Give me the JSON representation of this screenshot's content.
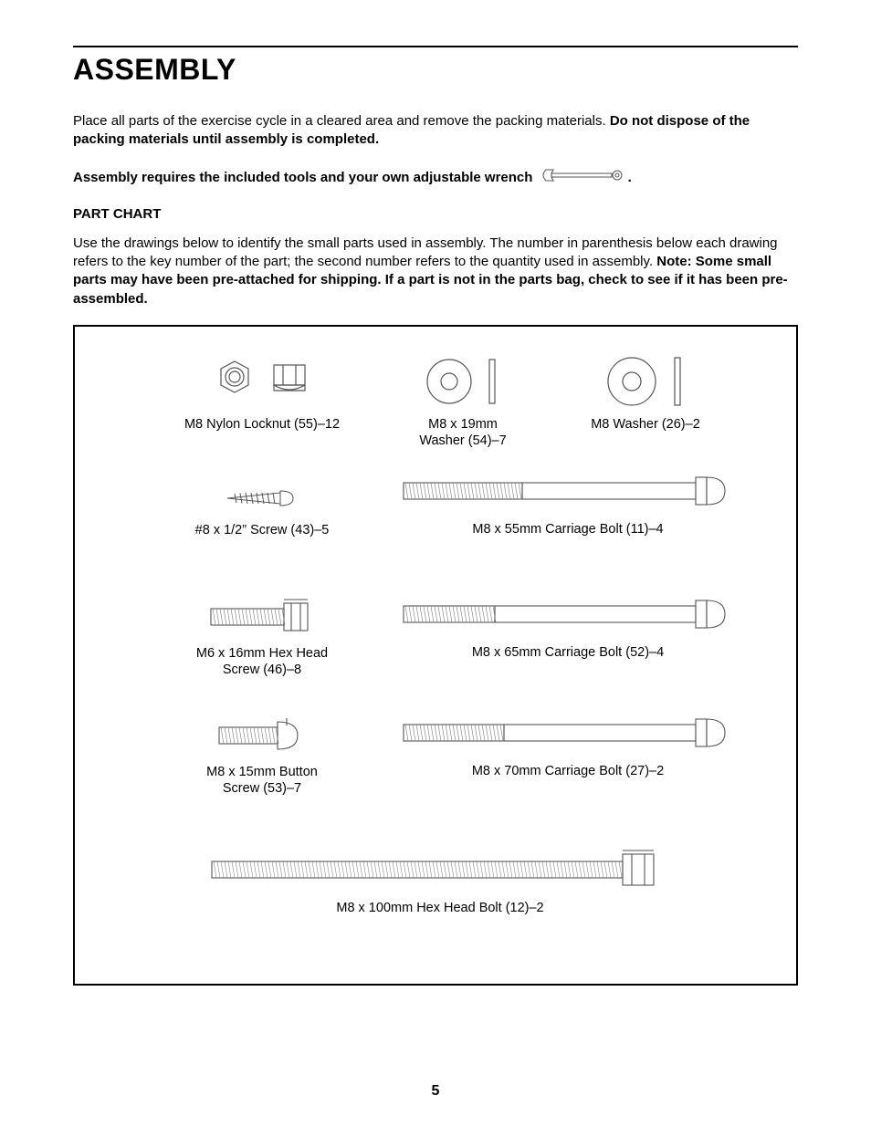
{
  "title": "ASSEMBLY",
  "intro": {
    "lead": "Place all parts of the exercise cycle in a cleared area and remove the packing materials. ",
    "bold1": "Do not dispose of the packing materials until assembly is completed.",
    "tools_lead": "Assembly requires the included tools and your own adjustable wrench",
    "tools_tail": "."
  },
  "partchart": {
    "heading": "PART CHART",
    "desc_lead": "Use the drawings below to identify the small parts used in assembly. The number in parenthesis below each drawing refers to the key number of the part; the second number refers to the quantity used in assembly. ",
    "desc_bold": "Note: Some small parts may have been pre-attached for shipping. If a part is not in the parts bag, check to see if it has been pre-assembled."
  },
  "parts": {
    "locknut": "M8 Nylon Locknut (55)–12",
    "washer19": "M8 x 19mm\nWasher (54)–7",
    "washer": "M8 Washer (26)–2",
    "screw8": "#8 x 1/2” Screw (43)–5",
    "cb55": "M8 x 55mm Carriage Bolt (11)–4",
    "hex16": "M6 x 16mm Hex Head\nScrew  (46)–8",
    "cb65": "M8 x 65mm Carriage Bolt (52)–4",
    "button15": "M8 x 15mm Button\nScrew (53)–7",
    "cb70": "M8 x 70mm Carriage Bolt (27)–2",
    "hex100": "M8 x 100mm Hex Head Bolt (12)–2"
  },
  "pagenum": "5",
  "style": {
    "stroke": "#555555",
    "stroke_light": "#888888",
    "thread_stroke_width": 0.8,
    "outline_stroke_width": 1.2
  }
}
